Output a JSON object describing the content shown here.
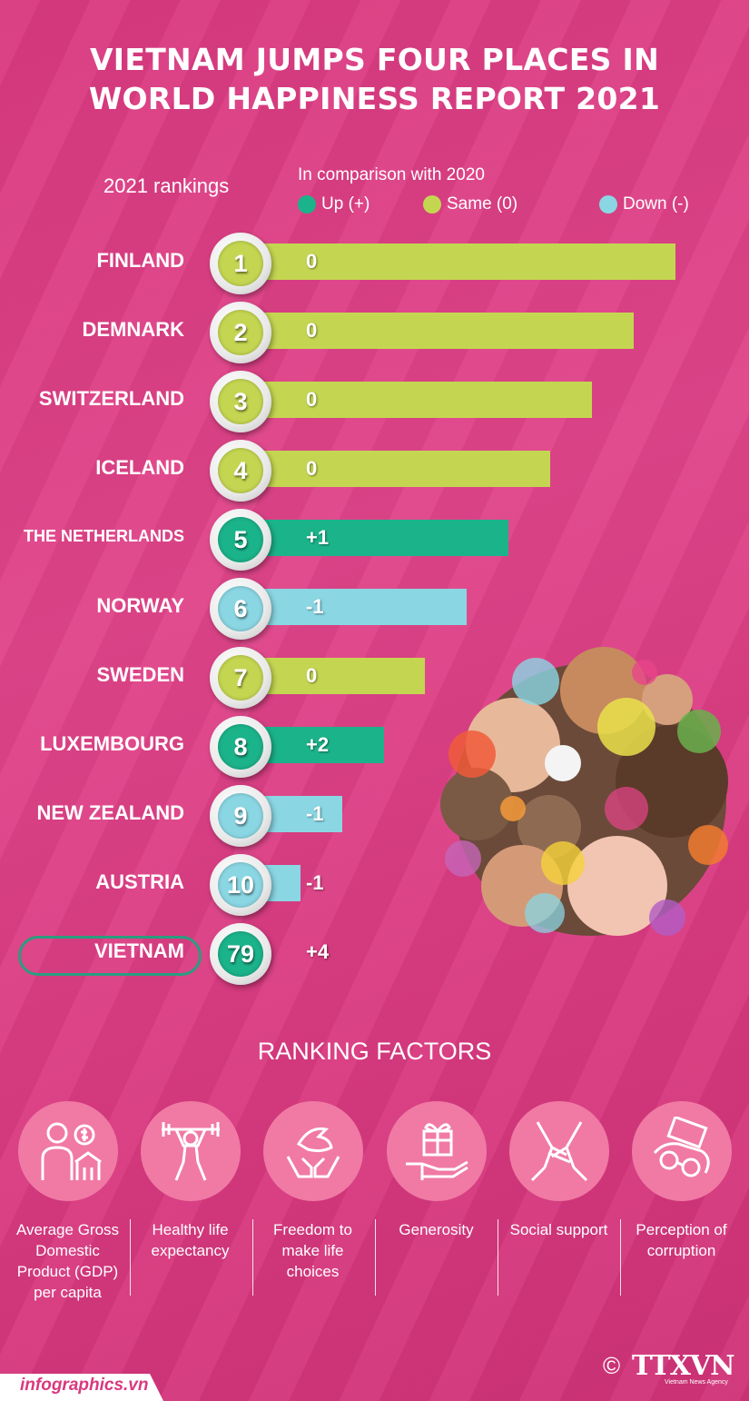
{
  "title": {
    "line1": "VIETNAM JUMPS FOUR PLACES IN",
    "line2": "WORLD HAPPINESS REPORT 2021"
  },
  "legend": {
    "rankings_label": "2021 rankings",
    "comparison_label": "In comparison with 2020",
    "up": {
      "label": "Up (+)",
      "color": "#1bb38a"
    },
    "same": {
      "label": "Same (0)",
      "color": "#c4d651"
    },
    "down": {
      "label": "Down (-)",
      "color": "#8ad6e3"
    }
  },
  "rankings": [
    {
      "country": "FINLAND",
      "rank": "1",
      "change": "0",
      "status": "same"
    },
    {
      "country": "DEMNARK",
      "rank": "2",
      "change": "0",
      "status": "same"
    },
    {
      "country": "SWITZERLAND",
      "rank": "3",
      "change": "0",
      "status": "same"
    },
    {
      "country": "ICELAND",
      "rank": "4",
      "change": "0",
      "status": "same"
    },
    {
      "country": "THE NETHERLANDS",
      "rank": "5",
      "change": "+1",
      "status": "up"
    },
    {
      "country": "NORWAY",
      "rank": "6",
      "change": "-1",
      "status": "down"
    },
    {
      "country": "SWEDEN",
      "rank": "7",
      "change": "0",
      "status": "same"
    },
    {
      "country": "LUXEMBOURG",
      "rank": "8",
      "change": "+2",
      "status": "up"
    },
    {
      "country": "NEW ZEALAND",
      "rank": "9",
      "change": "-1",
      "status": "down"
    },
    {
      "country": "AUSTRIA",
      "rank": "10",
      "change": "-1",
      "status": "down"
    },
    {
      "country": "VIETNAM",
      "rank": "79",
      "change": "+4",
      "status": "up"
    }
  ],
  "factors": {
    "title": "RANKING FACTORS",
    "items": [
      {
        "label": "Average Gross Domestic Product (GDP) per capita",
        "icon": "businessman-money-icon"
      },
      {
        "label": "Healthy life expectancy",
        "icon": "weightlifter-icon"
      },
      {
        "label": "Freedom to make life choices",
        "icon": "dove-hands-icon"
      },
      {
        "label": "Generosity",
        "icon": "gift-hand-icon"
      },
      {
        "label": "Social support",
        "icon": "joined-hands-icon"
      },
      {
        "label": "Perception of corruption",
        "icon": "handcuffed-money-icon"
      }
    ]
  },
  "footer": {
    "site": "infographics.vn",
    "copyright": "©",
    "brand": "TTXVN",
    "brand_sub": "Vietnam News Agency"
  }
}
